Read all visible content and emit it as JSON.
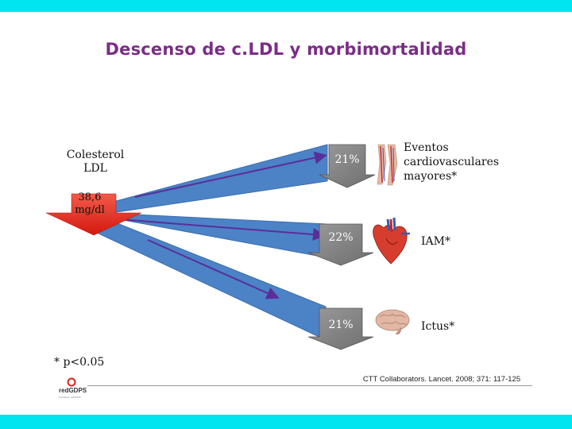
{
  "title": "Descenso de c.LDL y morbimortalidad",
  "cholesterol": {
    "label_line1": "Colesterol",
    "label_line2": "LDL",
    "value_line1": "38,6",
    "value_line2": "mg/dl"
  },
  "outcomes": [
    {
      "percent": "21%",
      "label_lines": [
        "Eventos",
        "cardiovasculares",
        "mayores*"
      ],
      "icon": "legs-vessels-icon"
    },
    {
      "percent": "22%",
      "label_lines": [
        "IAM*"
      ],
      "icon": "heart-icon"
    },
    {
      "percent": "21%",
      "label_lines": [
        "Ictus*"
      ],
      "icon": "brain-icon"
    }
  ],
  "footnote": "* p<0.05",
  "reference": "CTT Collaborators. Lancet. 2008; 371: 117-125",
  "logo": {
    "name": "redGDPS",
    "tagline": "Fundación redGDPS"
  },
  "colors": {
    "band": "#00e5f0",
    "title": "#7a2d86",
    "beam": "#4c82c6",
    "arrow_box": "#7d7d7d",
    "red": "#e8241c",
    "line": "#5a2e9a"
  }
}
